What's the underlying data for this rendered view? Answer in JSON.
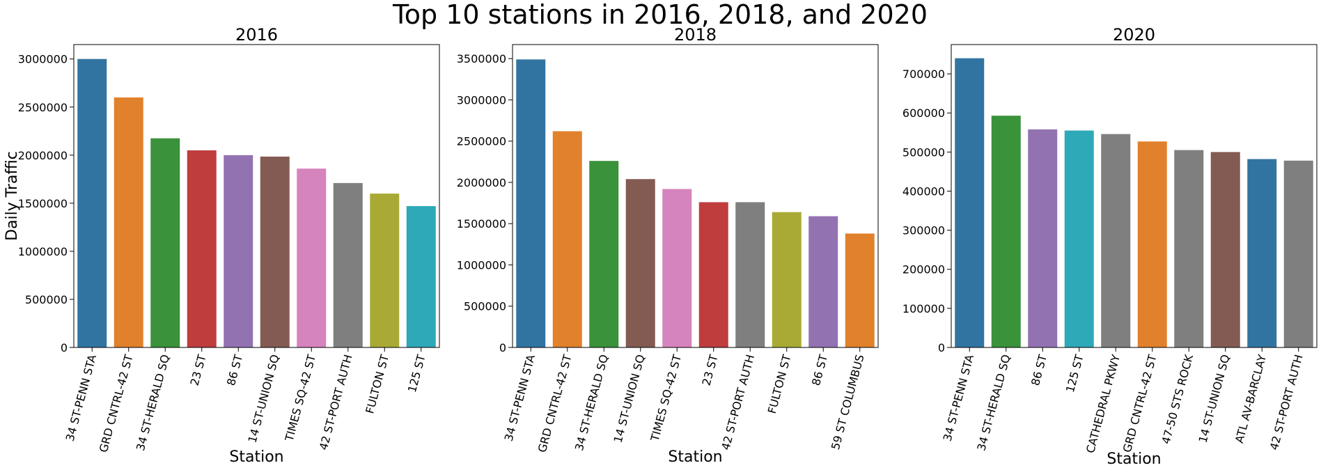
{
  "suptitle": "Top 10 stations in 2016, 2018, and 2020",
  "chart_data": [
    {
      "type": "bar",
      "title": "2016",
      "xlabel": "Station",
      "ylabel": "Daily Traffic",
      "ylim": [
        0,
        3150000
      ],
      "yticks": [
        0,
        500000,
        1000000,
        1500000,
        2000000,
        2500000,
        3000000
      ],
      "grid": false,
      "categories": [
        "34 ST-PENN STA",
        "GRD CNTRL-42 ST",
        "34 ST-HERALD SQ",
        "23 ST",
        "86 ST",
        "14 ST-UNION SQ",
        "TIMES SQ-42 ST",
        "42 ST-PORT AUTH",
        "FULTON ST",
        "125 ST"
      ],
      "values": [
        3000000,
        2600000,
        2175000,
        2050000,
        2000000,
        1985000,
        1860000,
        1710000,
        1600000,
        1470000
      ],
      "colors": [
        "#3274a1",
        "#e1812c",
        "#3a923a",
        "#c03d3e",
        "#9372b2",
        "#845b53",
        "#d684bd",
        "#7f7f7f",
        "#a9aa35",
        "#2ea9b8"
      ]
    },
    {
      "type": "bar",
      "title": "2018",
      "xlabel": "Station",
      "ylabel": "",
      "ylim": [
        0,
        3670000
      ],
      "yticks": [
        0,
        500000,
        1000000,
        1500000,
        2000000,
        2500000,
        3000000,
        3500000
      ],
      "grid": false,
      "categories": [
        "34 ST-PENN STA",
        "GRD CNTRL-42 ST",
        "34 ST-HERALD SQ",
        "14 ST-UNION SQ",
        "TIMES SQ-42 ST",
        "23 ST",
        "42 ST-PORT AUTH",
        "FULTON ST",
        "86 ST",
        "59 ST COLUMBUS"
      ],
      "values": [
        3490000,
        2620000,
        2260000,
        2040000,
        1920000,
        1760000,
        1760000,
        1640000,
        1590000,
        1380000
      ],
      "colors": [
        "#3274a1",
        "#e1812c",
        "#3a923a",
        "#845b53",
        "#d684bd",
        "#c03d3e",
        "#7f7f7f",
        "#a9aa35",
        "#9372b2",
        "#e1812c"
      ]
    },
    {
      "type": "bar",
      "title": "2020",
      "xlabel": "Station",
      "ylabel": "",
      "ylim": [
        0,
        775000
      ],
      "yticks": [
        0,
        100000,
        200000,
        300000,
        400000,
        500000,
        600000,
        700000
      ],
      "grid": false,
      "categories": [
        "34 ST-PENN STA",
        "34 ST-HERALD SQ",
        "86 ST",
        "125 ST",
        "CATHEDRAL PKWY",
        "GRD CNTRL-42 ST",
        "47-50 STS ROCK",
        "14 ST-UNION SQ",
        "ATL AV-BARCLAY",
        "42 ST-PORT AUTH"
      ],
      "values": [
        740000,
        593000,
        558000,
        555000,
        546000,
        527000,
        505000,
        500000,
        482000,
        478000
      ],
      "colors": [
        "#3274a1",
        "#3a923a",
        "#9372b2",
        "#2ea9b8",
        "#7f7f7f",
        "#e1812c",
        "#7f7f7f",
        "#845b53",
        "#3274a1",
        "#7f7f7f"
      ]
    }
  ]
}
